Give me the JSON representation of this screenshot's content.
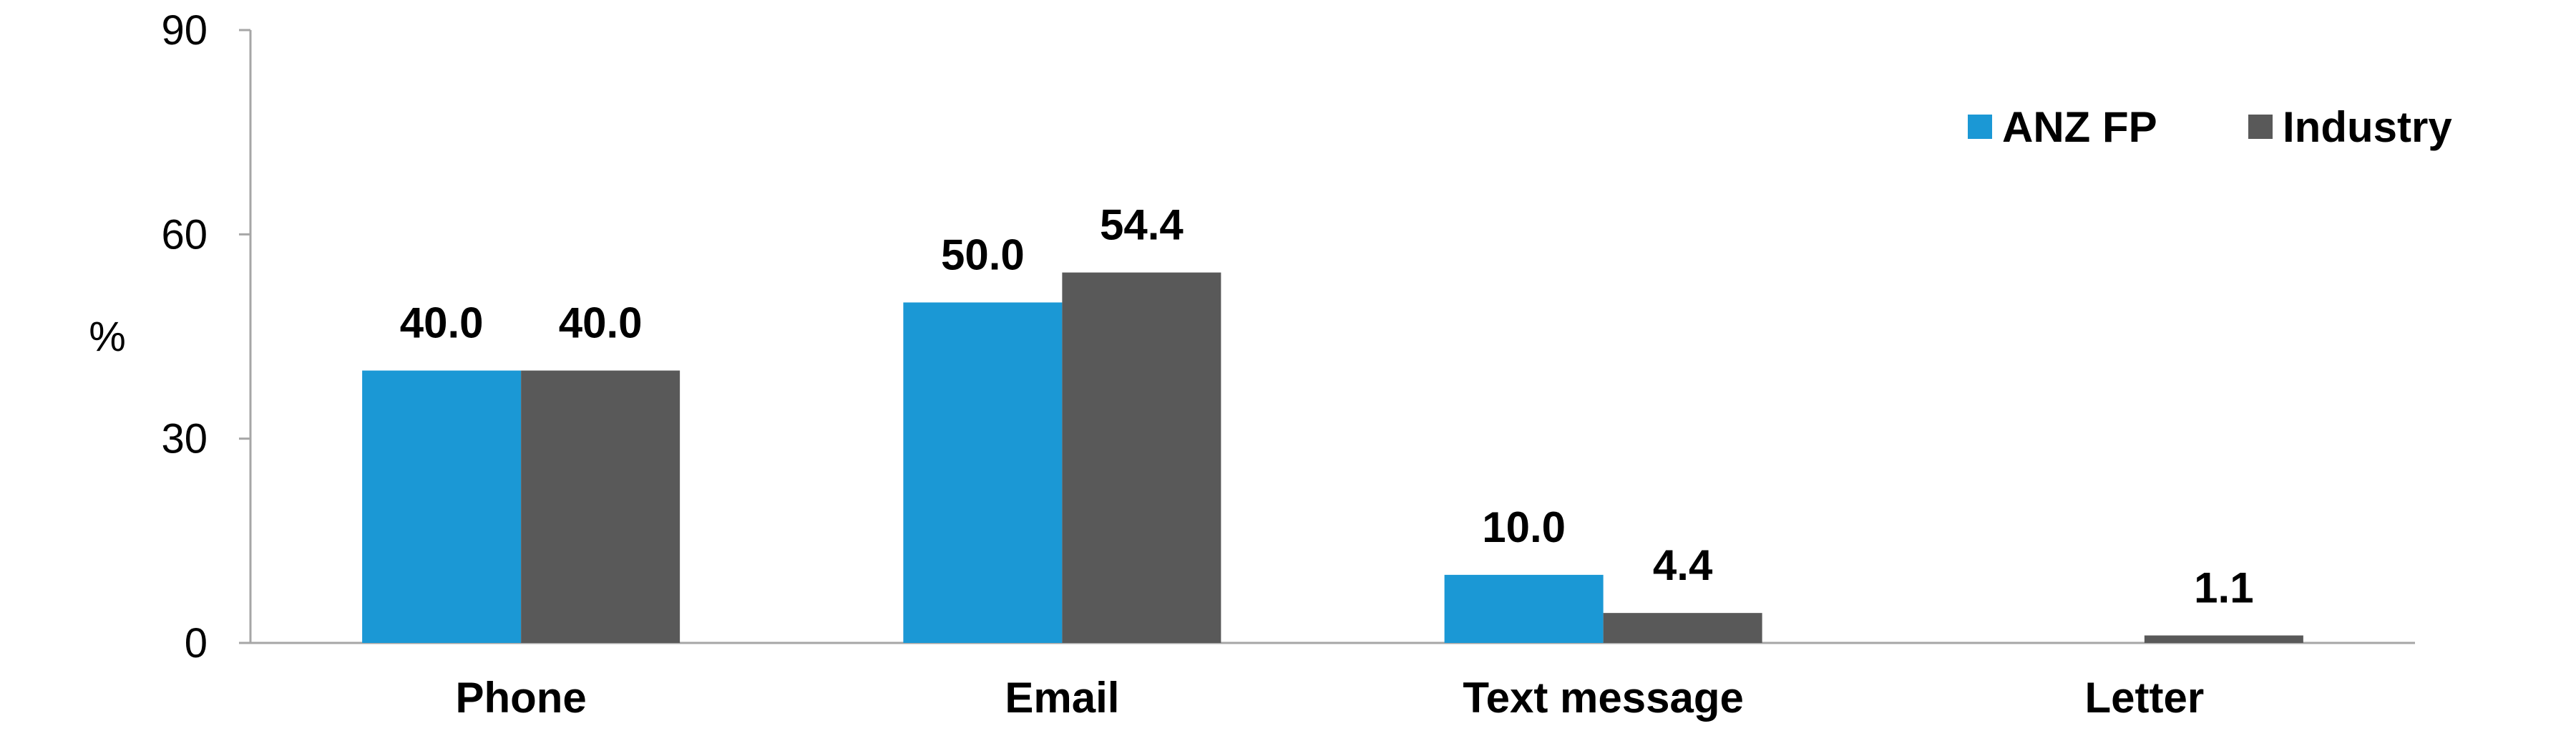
{
  "chart_data": {
    "type": "bar",
    "categories": [
      "Phone",
      "Email",
      "Text message",
      "Letter"
    ],
    "series": [
      {
        "name": "ANZ FP",
        "values": [
          40.0,
          50.0,
          10.0,
          null
        ],
        "labels": [
          "40.0",
          "50.0",
          "10.0",
          ""
        ],
        "color": "#1b98d5"
      },
      {
        "name": "Industry",
        "values": [
          40.0,
          54.4,
          4.4,
          1.1
        ],
        "labels": [
          "40.0",
          "54.4",
          "4.4",
          "1.1"
        ],
        "color": "#595959"
      }
    ],
    "ylabel": "%",
    "ylim": [
      0,
      90
    ],
    "yticks": [
      "0",
      "30",
      "60",
      "90"
    ],
    "grid": false,
    "legend": "top-right"
  }
}
